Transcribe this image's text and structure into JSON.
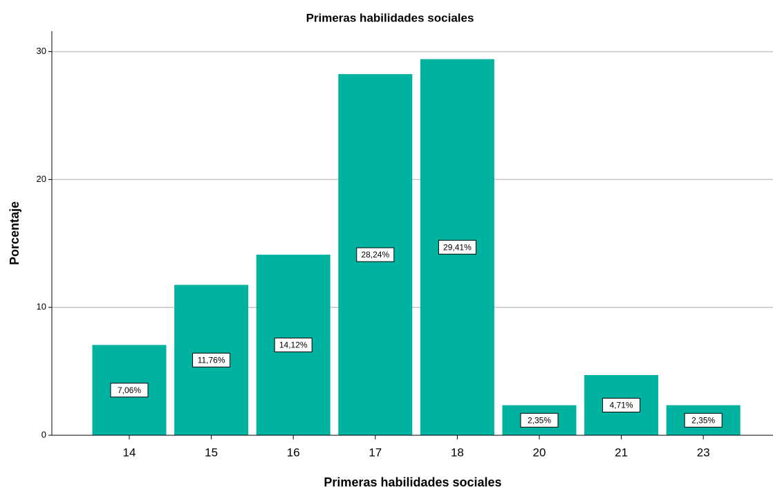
{
  "chart_data": {
    "type": "bar",
    "title": "Primeras habilidades sociales",
    "x_label": "Primeras habilidades sociales",
    "y_label": "Porcentaje",
    "categories": [
      "14",
      "15",
      "16",
      "17",
      "18",
      "20",
      "21",
      "23"
    ],
    "values": [
      7.06,
      11.76,
      14.12,
      28.24,
      29.41,
      2.35,
      4.71,
      2.35
    ],
    "value_labels": [
      "7,06%",
      "11,76%",
      "14,12%",
      "28,24%",
      "29,41%",
      "2,35%",
      "4,71%",
      "2,35%"
    ],
    "color": "#00b3a0",
    "ylim": [
      0,
      31.6
    ],
    "yticks": [
      0,
      10,
      20,
      30
    ],
    "grid": true
  }
}
